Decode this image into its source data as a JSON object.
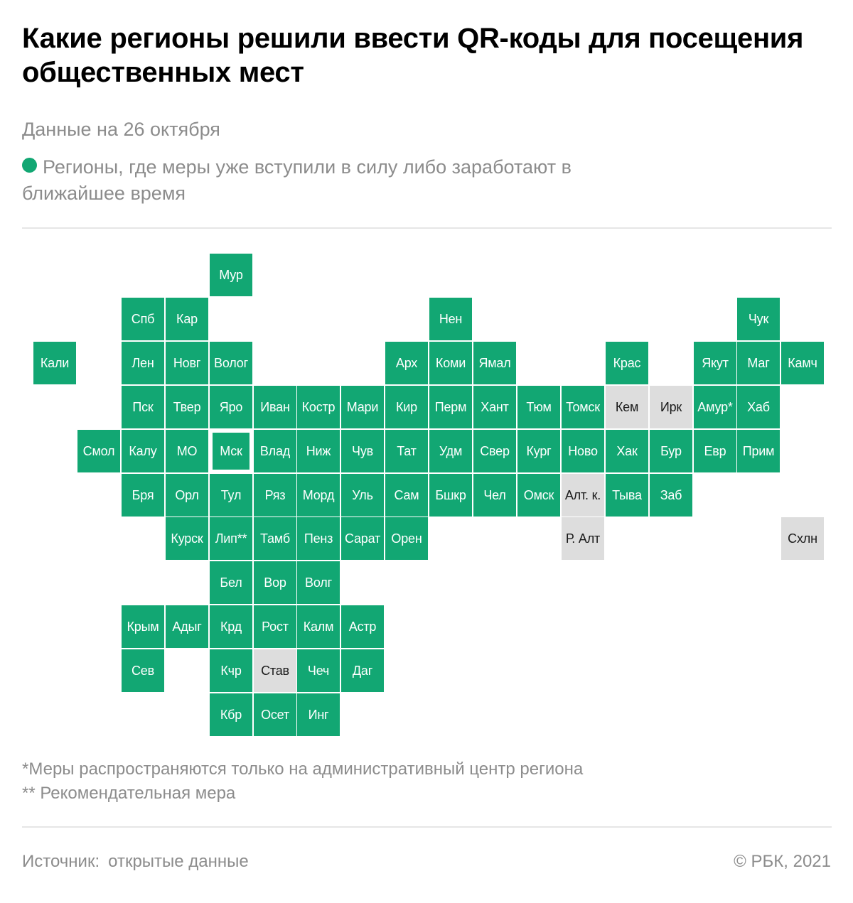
{
  "header": {
    "title": "Какие регионы решили ввести QR-коды для посещения общественных мест",
    "subtitle": "Данные на 26 октября"
  },
  "legend": {
    "label": "Регионы, где меры уже вступили в силу либо заработают в ближайшее время",
    "color": "#12a773"
  },
  "colors": {
    "active": "#12a773",
    "inactive": "#dddddd"
  },
  "map": {
    "tiles": [
      {
        "label": "Мур",
        "col": 4,
        "row": 0,
        "active": true
      },
      {
        "label": "Спб",
        "col": 2,
        "row": 1,
        "active": true
      },
      {
        "label": "Кар",
        "col": 3,
        "row": 1,
        "active": true
      },
      {
        "label": "Нен",
        "col": 9,
        "row": 1,
        "active": true
      },
      {
        "label": "Чук",
        "col": 16,
        "row": 1,
        "active": true
      },
      {
        "label": "Кали",
        "col": 0,
        "row": 2,
        "active": true
      },
      {
        "label": "Лен",
        "col": 2,
        "row": 2,
        "active": true
      },
      {
        "label": "Новг",
        "col": 3,
        "row": 2,
        "active": true
      },
      {
        "label": "Волог",
        "col": 4,
        "row": 2,
        "active": true
      },
      {
        "label": "Арх",
        "col": 8,
        "row": 2,
        "active": true
      },
      {
        "label": "Коми",
        "col": 9,
        "row": 2,
        "active": true
      },
      {
        "label": "Ямал",
        "col": 10,
        "row": 2,
        "active": true
      },
      {
        "label": "Крас",
        "col": 13,
        "row": 2,
        "active": true
      },
      {
        "label": "Якут",
        "col": 15,
        "row": 2,
        "active": true
      },
      {
        "label": "Маг",
        "col": 16,
        "row": 2,
        "active": true
      },
      {
        "label": "Камч",
        "col": 17,
        "row": 2,
        "active": true
      },
      {
        "label": "Пск",
        "col": 2,
        "row": 3,
        "active": true
      },
      {
        "label": "Твер",
        "col": 3,
        "row": 3,
        "active": true
      },
      {
        "label": "Яро",
        "col": 4,
        "row": 3,
        "active": true
      },
      {
        "label": "Иван",
        "col": 5,
        "row": 3,
        "active": true
      },
      {
        "label": "Костр",
        "col": 6,
        "row": 3,
        "active": true
      },
      {
        "label": "Мари",
        "col": 7,
        "row": 3,
        "active": true
      },
      {
        "label": "Кир",
        "col": 8,
        "row": 3,
        "active": true
      },
      {
        "label": "Перм",
        "col": 9,
        "row": 3,
        "active": true
      },
      {
        "label": "Хант",
        "col": 10,
        "row": 3,
        "active": true
      },
      {
        "label": "Тюм",
        "col": 11,
        "row": 3,
        "active": true
      },
      {
        "label": "Томск",
        "col": 12,
        "row": 3,
        "active": true
      },
      {
        "label": "Кем",
        "col": 13,
        "row": 3,
        "active": false
      },
      {
        "label": "Ирк",
        "col": 14,
        "row": 3,
        "active": false
      },
      {
        "label": "Амур*",
        "col": 15,
        "row": 3,
        "active": true
      },
      {
        "label": "Хаб",
        "col": 16,
        "row": 3,
        "active": true
      },
      {
        "label": "Смол",
        "col": 1,
        "row": 4,
        "active": true
      },
      {
        "label": "Калу",
        "col": 2,
        "row": 4,
        "active": true
      },
      {
        "label": "МО",
        "col": 3,
        "row": 4,
        "active": true
      },
      {
        "label": "Мск",
        "col": 4,
        "row": 4,
        "active": true,
        "highlight": true
      },
      {
        "label": "Влад",
        "col": 5,
        "row": 4,
        "active": true
      },
      {
        "label": "Ниж",
        "col": 6,
        "row": 4,
        "active": true
      },
      {
        "label": "Чув",
        "col": 7,
        "row": 4,
        "active": true
      },
      {
        "label": "Тат",
        "col": 8,
        "row": 4,
        "active": true
      },
      {
        "label": "Удм",
        "col": 9,
        "row": 4,
        "active": true
      },
      {
        "label": "Свер",
        "col": 10,
        "row": 4,
        "active": true
      },
      {
        "label": "Кург",
        "col": 11,
        "row": 4,
        "active": true
      },
      {
        "label": "Ново",
        "col": 12,
        "row": 4,
        "active": true
      },
      {
        "label": "Хак",
        "col": 13,
        "row": 4,
        "active": true
      },
      {
        "label": "Бур",
        "col": 14,
        "row": 4,
        "active": true
      },
      {
        "label": "Евр",
        "col": 15,
        "row": 4,
        "active": true
      },
      {
        "label": "Прим",
        "col": 16,
        "row": 4,
        "active": true
      },
      {
        "label": "Бря",
        "col": 2,
        "row": 5,
        "active": true
      },
      {
        "label": "Орл",
        "col": 3,
        "row": 5,
        "active": true
      },
      {
        "label": "Тул",
        "col": 4,
        "row": 5,
        "active": true
      },
      {
        "label": "Ряз",
        "col": 5,
        "row": 5,
        "active": true
      },
      {
        "label": "Морд",
        "col": 6,
        "row": 5,
        "active": true
      },
      {
        "label": "Уль",
        "col": 7,
        "row": 5,
        "active": true
      },
      {
        "label": "Сам",
        "col": 8,
        "row": 5,
        "active": true
      },
      {
        "label": "Бшкр",
        "col": 9,
        "row": 5,
        "active": true
      },
      {
        "label": "Чел",
        "col": 10,
        "row": 5,
        "active": true
      },
      {
        "label": "Омск",
        "col": 11,
        "row": 5,
        "active": true
      },
      {
        "label": "Алт. к.",
        "col": 12,
        "row": 5,
        "active": false
      },
      {
        "label": "Тыва",
        "col": 13,
        "row": 5,
        "active": true
      },
      {
        "label": "Заб",
        "col": 14,
        "row": 5,
        "active": true
      },
      {
        "label": "Курск",
        "col": 3,
        "row": 6,
        "active": true
      },
      {
        "label": "Лип**",
        "col": 4,
        "row": 6,
        "active": true
      },
      {
        "label": "Тамб",
        "col": 5,
        "row": 6,
        "active": true
      },
      {
        "label": "Пенз",
        "col": 6,
        "row": 6,
        "active": true
      },
      {
        "label": "Сарат",
        "col": 7,
        "row": 6,
        "active": true
      },
      {
        "label": "Орен",
        "col": 8,
        "row": 6,
        "active": true
      },
      {
        "label": "Р. Алт",
        "col": 12,
        "row": 6,
        "active": false
      },
      {
        "label": "Схлн",
        "col": 17,
        "row": 6,
        "active": false
      },
      {
        "label": "Бел",
        "col": 4,
        "row": 7,
        "active": true
      },
      {
        "label": "Вор",
        "col": 5,
        "row": 7,
        "active": true
      },
      {
        "label": "Волг",
        "col": 6,
        "row": 7,
        "active": true
      },
      {
        "label": "Крым",
        "col": 2,
        "row": 8,
        "active": true
      },
      {
        "label": "Адыг",
        "col": 3,
        "row": 8,
        "active": true
      },
      {
        "label": "Крд",
        "col": 4,
        "row": 8,
        "active": true
      },
      {
        "label": "Рост",
        "col": 5,
        "row": 8,
        "active": true
      },
      {
        "label": "Калм",
        "col": 6,
        "row": 8,
        "active": true
      },
      {
        "label": "Астр",
        "col": 7,
        "row": 8,
        "active": true
      },
      {
        "label": "Сев",
        "col": 2,
        "row": 9,
        "active": true
      },
      {
        "label": "Кчр",
        "col": 4,
        "row": 9,
        "active": true
      },
      {
        "label": "Став",
        "col": 5,
        "row": 9,
        "active": false
      },
      {
        "label": "Чеч",
        "col": 6,
        "row": 9,
        "active": true
      },
      {
        "label": "Даг",
        "col": 7,
        "row": 9,
        "active": true
      },
      {
        "label": "Кбр",
        "col": 4,
        "row": 10,
        "active": true
      },
      {
        "label": "Осет",
        "col": 5,
        "row": 10,
        "active": true
      },
      {
        "label": "Инг",
        "col": 6,
        "row": 10,
        "active": true
      }
    ]
  },
  "footnotes": {
    "note1": "*Меры распространяются только на административный центр региона",
    "note2": "** Рекомендательная мера"
  },
  "footer": {
    "source_label": "Источник:",
    "source_value": "открытые данные",
    "copyright": "© РБК, 2021"
  }
}
